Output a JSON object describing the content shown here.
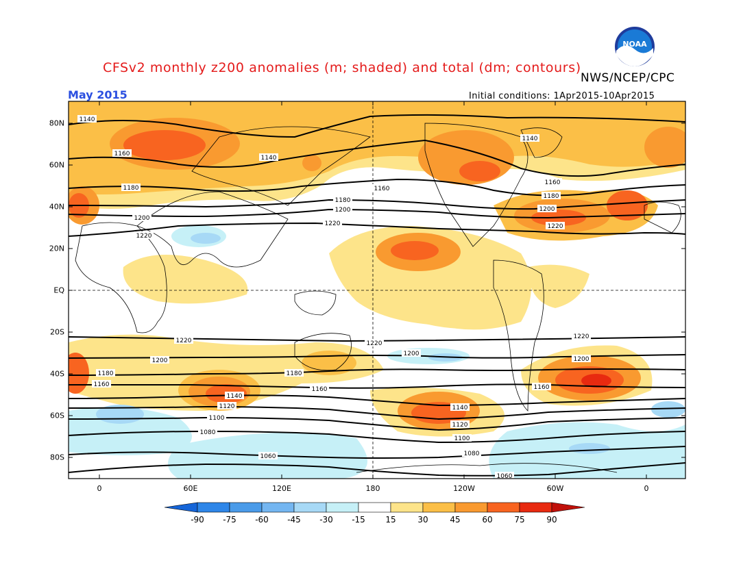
{
  "header": {
    "title": "CFSv2 monthly z200 anomalies (m; shaded) and total (dm; contours)",
    "credit": "NWS/NCEP/CPC",
    "month": "May 2015",
    "initial_conditions": "Initial conditions: 1Apr2015-10Apr2015",
    "logo_text": "NOAA"
  },
  "axes": {
    "lat_labels": [
      "80N",
      "60N",
      "40N",
      "20N",
      "EQ",
      "20S",
      "40S",
      "60S",
      "80S"
    ],
    "lon_labels": [
      "0",
      "60E",
      "120E",
      "180",
      "120W",
      "60W",
      "0"
    ]
  },
  "colorbar": {
    "levels": [
      "-90",
      "-75",
      "-60",
      "-45",
      "-30",
      "-15",
      "15",
      "30",
      "45",
      "60",
      "75",
      "90"
    ],
    "colors": [
      "#1565d8",
      "#2e86e8",
      "#4a9be9",
      "#74b6f1",
      "#a7d9f6",
      "#c6f0f7",
      "#ffffff",
      "#fde48a",
      "#fbbf47",
      "#f99a30",
      "#f86420",
      "#e82a10",
      "#c0100a"
    ]
  },
  "contour_labels": [
    {
      "text": "1140"
    },
    {
      "text": "1160"
    },
    {
      "text": "1180"
    },
    {
      "text": "1200"
    },
    {
      "text": "1220"
    },
    {
      "text": "1140"
    },
    {
      "text": "1160"
    },
    {
      "text": "1180"
    },
    {
      "text": "1200"
    },
    {
      "text": "1220"
    },
    {
      "text": "1140"
    },
    {
      "text": "1160"
    },
    {
      "text": "1180"
    },
    {
      "text": "1200"
    },
    {
      "text": "1220"
    },
    {
      "text": "1220"
    },
    {
      "text": "1200"
    },
    {
      "text": "1180"
    },
    {
      "text": "1160"
    },
    {
      "text": "1140"
    },
    {
      "text": "1120"
    },
    {
      "text": "1100"
    },
    {
      "text": "1080"
    },
    {
      "text": "1060"
    },
    {
      "text": "1220"
    },
    {
      "text": "1200"
    },
    {
      "text": "1180"
    },
    {
      "text": "1160"
    },
    {
      "text": "1140"
    },
    {
      "text": "1120"
    },
    {
      "text": "1100"
    },
    {
      "text": "1080"
    },
    {
      "text": "1060"
    },
    {
      "text": "1220"
    },
    {
      "text": "1200"
    },
    {
      "text": "1160"
    }
  ]
}
